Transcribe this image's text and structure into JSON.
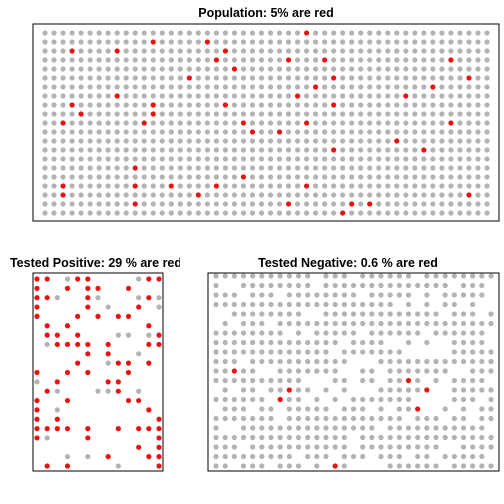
{
  "colors": {
    "grey": "#b3b3b3",
    "red": "#ee1111"
  },
  "chart_data": [
    {
      "type": "scatter",
      "title": "Population: 5% are red",
      "xlabel": "",
      "ylabel": "",
      "grid": false,
      "cols": 50,
      "rows": 21,
      "red_fraction": 0.05,
      "grey_fraction": 1.0,
      "seed": 7
    },
    {
      "type": "scatter",
      "title": "Tested Positive: 29 % are red",
      "xlabel": "",
      "ylabel": "",
      "grid": false,
      "cols": 13,
      "rows": 21,
      "red_fraction": 0.29,
      "grey_fraction": 0.2,
      "seed": 11
    },
    {
      "type": "scatter",
      "title": "Tested Negative: 0.6 % are red",
      "xlabel": "",
      "ylabel": "",
      "grid": false,
      "cols": 31,
      "rows": 21,
      "red_fraction": 0.006,
      "grey_fraction": 0.8,
      "seed": 23
    }
  ]
}
